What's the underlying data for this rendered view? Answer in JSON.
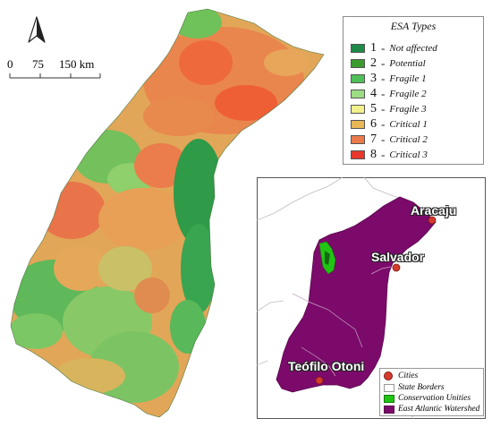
{
  "north_arrow": {
    "icon": "north-arrow-icon"
  },
  "scale_bar": {
    "ticks": [
      "0",
      "75",
      "150 km"
    ]
  },
  "esa_legend": {
    "title": "ESA Types",
    "items": [
      {
        "code": "1",
        "label": "Not affected",
        "color": "#1e8a47"
      },
      {
        "code": "2",
        "label": "Potential",
        "color": "#3b9b2f"
      },
      {
        "code": "3",
        "label": "Fragile 1",
        "color": "#4fbf58"
      },
      {
        "code": "4",
        "label": "Fragile 2",
        "color": "#9ddc85"
      },
      {
        "code": "5",
        "label": "Fragile 3",
        "color": "#f2f08c"
      },
      {
        "code": "6",
        "label": "Critical 1",
        "color": "#e6b856"
      },
      {
        "code": "7",
        "label": "Critical 2",
        "color": "#ea7a4a"
      },
      {
        "code": "8",
        "label": "Critical 3",
        "color": "#e8382b"
      }
    ]
  },
  "inset": {
    "cities": [
      {
        "name": "Aracaju"
      },
      {
        "name": "Salvador"
      },
      {
        "name": "Teófilo Otoni"
      }
    ],
    "legend": [
      {
        "label": "Cities",
        "color": "#d63c2e"
      },
      {
        "label": "State Borders",
        "color": "#ffffff"
      },
      {
        "label": "Conservation Unities",
        "color": "#22c414"
      },
      {
        "label": "East Atlantic Watershed",
        "color": "#7c0a6b"
      }
    ]
  }
}
